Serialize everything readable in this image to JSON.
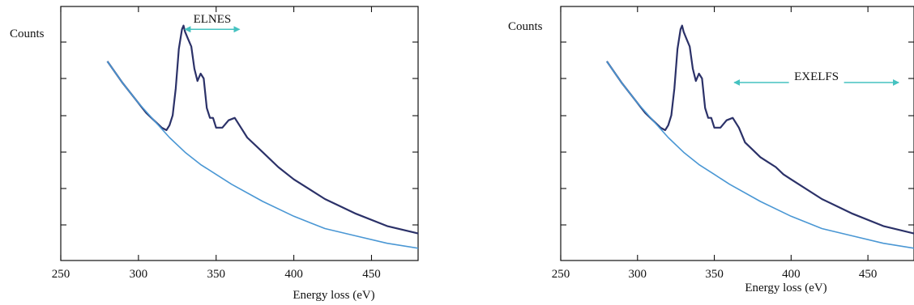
{
  "colors": {
    "spectrum": "#2b3168",
    "background_fit": "#4a97d4",
    "arrow": "#45c2c0",
    "axis": "#111111"
  },
  "chart_data": [
    {
      "type": "line",
      "title": "",
      "xlabel": "Energy loss (eV)",
      "ylabel": "Counts",
      "xlim": [
        250,
        480
      ],
      "ylim": [
        0,
        1
      ],
      "xticks": [
        "250",
        "300",
        "350",
        "400",
        "450"
      ],
      "grid": false,
      "annotation": {
        "text": "ELNES",
        "x_start": 330,
        "x_end": 365,
        "y": 0.94
      },
      "series": [
        {
          "x": [
            280,
            290,
            300,
            305,
            310,
            315,
            318,
            320,
            322,
            324,
            326,
            328,
            329,
            330,
            332,
            334,
            336,
            338,
            340,
            342,
            344,
            346,
            348,
            350,
            354,
            358,
            362,
            366,
            370,
            380,
            390,
            400,
            420,
            440,
            460,
            480
          ],
          "y": [
            0.81,
            0.72,
            0.64,
            0.6,
            0.57,
            0.54,
            0.53,
            0.55,
            0.59,
            0.7,
            0.86,
            0.94,
            0.955,
            0.93,
            0.9,
            0.87,
            0.78,
            0.73,
            0.76,
            0.74,
            0.62,
            0.58,
            0.58,
            0.54,
            0.54,
            0.57,
            0.58,
            0.54,
            0.5,
            0.44,
            0.38,
            0.33,
            0.25,
            0.19,
            0.14,
            0.11
          ]
        },
        {
          "x": [
            280,
            290,
            300,
            310,
            320,
            330,
            340,
            350,
            360,
            380,
            400,
            420,
            440,
            460,
            480
          ],
          "y": [
            0.81,
            0.72,
            0.64,
            0.57,
            0.5,
            0.44,
            0.39,
            0.35,
            0.31,
            0.24,
            0.18,
            0.13,
            0.1,
            0.07,
            0.05
          ]
        }
      ]
    },
    {
      "type": "line",
      "title": "",
      "xlabel": "Energy loss (eV)",
      "ylabel": "Counts",
      "xlim": [
        250,
        480
      ],
      "ylim": [
        0,
        1
      ],
      "xticks": [
        "250",
        "300",
        "350",
        "400",
        "450"
      ],
      "grid": false,
      "annotation": {
        "text": "EXELFS",
        "x_start": 363,
        "x_end": 470,
        "y": 0.75
      },
      "series": [
        {
          "x": [
            280,
            290,
            300,
            305,
            310,
            315,
            318,
            320,
            322,
            324,
            326,
            328,
            329,
            330,
            332,
            334,
            336,
            338,
            340,
            342,
            344,
            346,
            348,
            350,
            354,
            358,
            362,
            366,
            370,
            375,
            380,
            385,
            390,
            395,
            400,
            420,
            440,
            460,
            480
          ],
          "y": [
            0.81,
            0.72,
            0.64,
            0.6,
            0.57,
            0.54,
            0.53,
            0.55,
            0.59,
            0.7,
            0.86,
            0.94,
            0.955,
            0.93,
            0.9,
            0.87,
            0.78,
            0.73,
            0.76,
            0.74,
            0.62,
            0.58,
            0.58,
            0.54,
            0.54,
            0.57,
            0.58,
            0.54,
            0.48,
            0.45,
            0.42,
            0.4,
            0.38,
            0.35,
            0.33,
            0.25,
            0.19,
            0.14,
            0.11
          ]
        },
        {
          "x": [
            280,
            290,
            300,
            310,
            320,
            330,
            340,
            350,
            360,
            380,
            400,
            420,
            440,
            460,
            480
          ],
          "y": [
            0.81,
            0.72,
            0.64,
            0.57,
            0.5,
            0.44,
            0.39,
            0.35,
            0.31,
            0.24,
            0.18,
            0.13,
            0.1,
            0.07,
            0.05
          ]
        }
      ]
    }
  ]
}
